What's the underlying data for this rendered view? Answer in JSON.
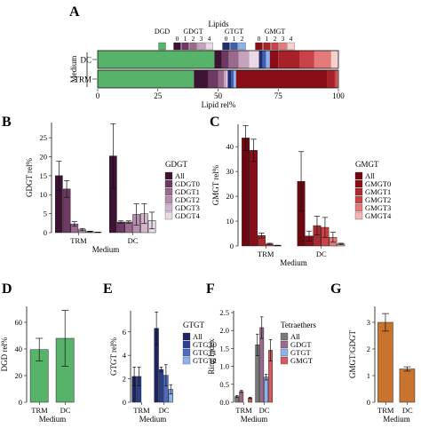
{
  "chart_data": [
    {
      "panel": "A",
      "type": "bar",
      "orientation": "horizontal",
      "stacked": true,
      "legend_title": "Lipids",
      "legend_groups": [
        {
          "label": "DGD",
          "codes": [
            ""
          ],
          "colors": [
            "#58b36a"
          ]
        },
        {
          "label": "GDGT",
          "codes": [
            "0",
            "1",
            "2",
            "3",
            "4"
          ],
          "colors": [
            "#3d1233",
            "#6e3a63",
            "#9a6a8e",
            "#c5a3bd",
            "#ead8e4"
          ]
        },
        {
          "label": "GTGT",
          "codes": [
            "0",
            "1",
            "2"
          ],
          "colors": [
            "#1f2c6e",
            "#3f5fb1",
            "#8db3ec"
          ]
        },
        {
          "label": "GMGT",
          "codes": [
            "0",
            "1",
            "2",
            "3",
            "4"
          ],
          "colors": [
            "#8a0e17",
            "#a82028",
            "#c94348",
            "#e37b7b",
            "#f8cfcf"
          ]
        }
      ],
      "categories": [
        "DC",
        "TRM"
      ],
      "ylabel": "Medium",
      "xlabel": "Lipid rel%",
      "xlim": [
        0,
        100
      ],
      "xticks": [
        0,
        25,
        50,
        75,
        100
      ],
      "stacks": [
        {
          "category": "DC",
          "segments": [
            {
              "name": "DGD",
              "value": 48.5
            },
            {
              "name": "GDGT0",
              "value": 3
            },
            {
              "name": "GDGT1",
              "value": 3
            },
            {
              "name": "GDGT2",
              "value": 4
            },
            {
              "name": "GDGT3",
              "value": 4.5
            },
            {
              "name": "GDGT4",
              "value": 4
            },
            {
              "name": "GTGT0",
              "value": 1.5
            },
            {
              "name": "GTGT1",
              "value": 1.5
            },
            {
              "name": "GTGT2",
              "value": 1.5
            },
            {
              "name": "GMGT0",
              "value": 3.5
            },
            {
              "name": "GMGT1",
              "value": 9
            },
            {
              "name": "GMGT2",
              "value": 6
            },
            {
              "name": "GMGT3",
              "value": 7
            },
            {
              "name": "GMGT4",
              "value": 3
            }
          ]
        },
        {
          "category": "TRM",
          "segments": [
            {
              "name": "DGD",
              "value": 40
            },
            {
              "name": "GDGT0",
              "value": 6
            },
            {
              "name": "GDGT1",
              "value": 4
            },
            {
              "name": "GDGT2",
              "value": 2.5
            },
            {
              "name": "GDGT3",
              "value": 1
            },
            {
              "name": "GDGT4",
              "value": 0.5
            },
            {
              "name": "GTGT0",
              "value": 1.5
            },
            {
              "name": "GTGT1",
              "value": 1
            },
            {
              "name": "GTGT2",
              "value": 1
            },
            {
              "name": "GMGT0",
              "value": 38
            },
            {
              "name": "GMGT1",
              "value": 3
            },
            {
              "name": "GMGT2",
              "value": 1
            },
            {
              "name": "GMGT3",
              "value": 0.5
            },
            {
              "name": "GMGT4",
              "value": 0
            }
          ]
        }
      ]
    },
    {
      "panel": "B",
      "type": "bar",
      "categories": [
        "TRM",
        "DC"
      ],
      "xlabel": "Medium",
      "ylabel": "GDGT rel%",
      "ylim": [
        0,
        29
      ],
      "yticks": [
        0,
        5,
        10,
        15,
        20,
        25
      ],
      "legend_title": "GDGT",
      "series": [
        {
          "name": "All",
          "color": "#3d1233",
          "values": [
            15,
            20.2
          ],
          "errors": [
            3.8,
            8.5
          ]
        },
        {
          "name": "GDGT0",
          "color": "#6e3a63",
          "values": [
            11.5,
            2.8
          ],
          "errors": [
            2.2,
            0.3
          ]
        },
        {
          "name": "GDGT1",
          "color": "#9a6a8e",
          "values": [
            2.3,
            2.8
          ],
          "errors": [
            0.6,
            0.3
          ]
        },
        {
          "name": "GDGT2",
          "color": "#b78fae",
          "values": [
            0.8,
            4.8
          ],
          "errors": [
            0.3,
            2.8
          ]
        },
        {
          "name": "GDGT3",
          "color": "#d4b6cc",
          "values": [
            0.3,
            5
          ],
          "errors": [
            0.1,
            2.6
          ]
        },
        {
          "name": "GDGT4",
          "color": "#ecdce7",
          "values": [
            0.1,
            3.2
          ],
          "errors": [
            0.05,
            2.2
          ]
        }
      ]
    },
    {
      "panel": "C",
      "type": "bar",
      "categories": [
        "TRM",
        "DC"
      ],
      "xlabel": "Medium",
      "ylabel": "GMGT rel%",
      "ylim": [
        0,
        49
      ],
      "yticks": [
        0,
        10,
        20,
        30,
        40
      ],
      "legend_title": "GMGT",
      "series": [
        {
          "name": "All",
          "color": "#6f0710",
          "values": [
            43.5,
            26
          ],
          "errors": [
            5,
            12
          ]
        },
        {
          "name": "GMGT0",
          "color": "#8a0e17",
          "values": [
            38.5,
            4
          ],
          "errors": [
            4.5,
            2
          ]
        },
        {
          "name": "GMGT1",
          "color": "#ab2a30",
          "values": [
            4.2,
            8.2
          ],
          "errors": [
            1,
            3.8
          ]
        },
        {
          "name": "GMGT2",
          "color": "#c94348",
          "values": [
            0.8,
            7.5
          ],
          "errors": [
            0.3,
            4
          ]
        },
        {
          "name": "GMGT3",
          "color": "#e37b7b",
          "values": [
            0.2,
            3.5
          ],
          "errors": [
            0.1,
            2
          ]
        },
        {
          "name": "GMGT4",
          "color": "#f5b5b5",
          "values": [
            0,
            0.8
          ],
          "errors": [
            0,
            0.3
          ]
        }
      ]
    },
    {
      "panel": "D",
      "type": "bar",
      "categories": [
        "TRM",
        "DC"
      ],
      "xlabel": "Medium",
      "ylabel": "DGD rel%",
      "ylim": [
        0,
        72
      ],
      "yticks": [
        0,
        20,
        40,
        60
      ],
      "series": [
        {
          "color": "#58b36a",
          "values": [
            39.5,
            48
          ],
          "errors": [
            8.5,
            21
          ]
        }
      ]
    },
    {
      "panel": "E",
      "type": "bar",
      "categories": [
        "TRM",
        "DC"
      ],
      "xlabel": "Medium",
      "ylabel": "GTGT rel%",
      "ylim": [
        0,
        7.8
      ],
      "yticks": [
        0,
        2,
        4,
        6
      ],
      "legend_title": "GTGT",
      "series": [
        {
          "name": "All",
          "color": "#1c2561",
          "values": [
            2.2,
            6.3
          ],
          "errors": [
            0.8,
            1.4
          ]
        },
        {
          "name": "GTGT0",
          "color": "#2d3f8f",
          "values": [
            2.2,
            2.8
          ],
          "errors": [
            0.8,
            0.2
          ]
        },
        {
          "name": "GTGT1",
          "color": "#4a6dc2",
          "values": [
            0,
            2.3
          ],
          "errors": [
            0,
            0.9
          ]
        },
        {
          "name": "GTGT2",
          "color": "#8db3ec",
          "values": [
            0,
            1.1
          ],
          "errors": [
            0,
            0.4
          ]
        }
      ]
    },
    {
      "panel": "F",
      "type": "bar",
      "categories": [
        "TRM",
        "DC"
      ],
      "xlabel": "Medium",
      "ylabel": "Ring Index",
      "ylim": [
        0,
        2.55
      ],
      "yticks": [
        0.0,
        0.5,
        1.0,
        1.5,
        2.0,
        2.5
      ],
      "legend_title": "Tetraethers",
      "series": [
        {
          "name": "All",
          "color": "#7a7a7a",
          "values": [
            0.16,
            1.6
          ],
          "errors": [
            0.03,
            0.3
          ]
        },
        {
          "name": "GDGT",
          "color": "#9a6a8e",
          "values": [
            0.3,
            2.08
          ],
          "errors": [
            0.03,
            0.3
          ]
        },
        {
          "name": "GTGT",
          "color": "#8db3ec",
          "values": [
            0,
            0.7
          ],
          "errors": [
            0,
            0.08
          ]
        },
        {
          "name": "GMGT",
          "color": "#d65a5e",
          "values": [
            0.12,
            1.45
          ],
          "errors": [
            0.02,
            0.3
          ]
        }
      ]
    },
    {
      "panel": "G",
      "type": "bar",
      "categories": [
        "TRM",
        "DC"
      ],
      "xlabel": "Medium",
      "ylabel": "GMGT/GDGT",
      "ylim": [
        0,
        3.6
      ],
      "yticks": [
        0,
        1,
        2,
        3
      ],
      "series": [
        {
          "color": "#c8742e",
          "values": [
            3,
            1.25
          ],
          "errors": [
            0.33,
            0.08
          ]
        }
      ]
    }
  ]
}
